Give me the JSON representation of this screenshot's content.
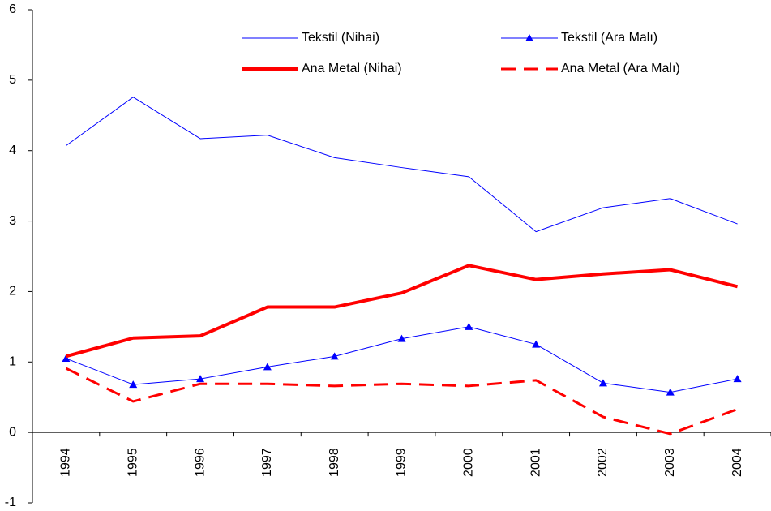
{
  "chart_data": {
    "type": "line",
    "categories": [
      "1994",
      "1995",
      "1996",
      "1997",
      "1998",
      "1999",
      "2000",
      "2001",
      "2002",
      "2003",
      "2004"
    ],
    "series": [
      {
        "name": "Tekstil (Nihai)",
        "color": "#0000ff",
        "line_width": 1,
        "dash": "solid",
        "marker": "none",
        "values": [
          4.07,
          4.76,
          4.17,
          4.22,
          3.9,
          3.76,
          3.63,
          2.85,
          3.19,
          3.32,
          2.96
        ]
      },
      {
        "name": "Tekstil (Ara Malı)",
        "color": "#0000ff",
        "line_width": 1,
        "dash": "solid",
        "marker": "triangle",
        "values": [
          1.05,
          0.68,
          0.76,
          0.93,
          1.08,
          1.33,
          1.5,
          1.25,
          0.7,
          0.57,
          0.76
        ]
      },
      {
        "name": "Ana Metal (Nihai)",
        "color": "#ff0000",
        "line_width": 4,
        "dash": "solid",
        "marker": "none",
        "values": [
          1.08,
          1.34,
          1.37,
          1.78,
          1.78,
          1.98,
          2.37,
          2.17,
          2.25,
          2.31,
          2.07
        ]
      },
      {
        "name": "Ana Metal (Ara Malı)",
        "color": "#ff0000",
        "line_width": 3,
        "dash": "dashed",
        "marker": "none",
        "values": [
          0.91,
          0.44,
          0.69,
          0.69,
          0.66,
          0.69,
          0.66,
          0.74,
          0.22,
          -0.02,
          0.33
        ]
      }
    ],
    "ylim": [
      -1,
      6
    ],
    "yticks": [
      -1,
      0,
      1,
      2,
      3,
      4,
      5,
      6
    ],
    "grid": false,
    "legend": "top"
  }
}
